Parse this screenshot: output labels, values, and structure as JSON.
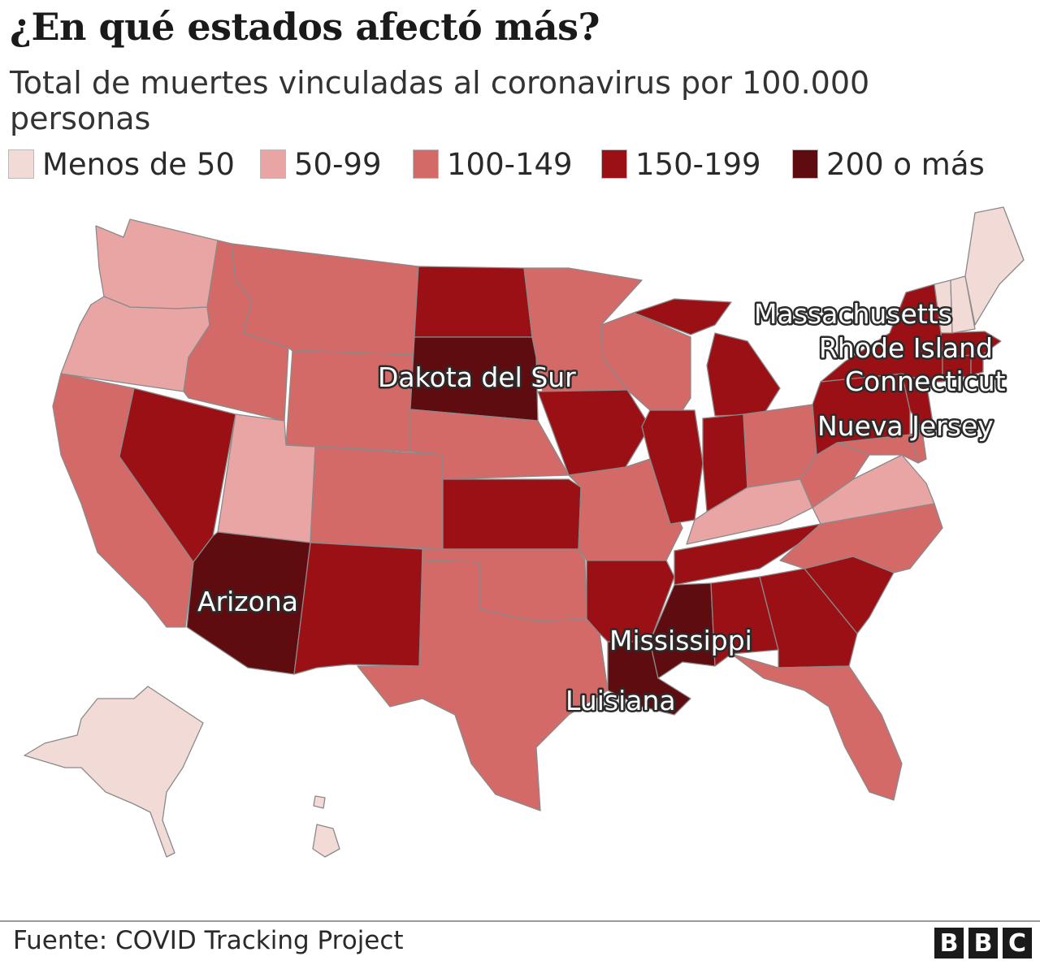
{
  "title": "¿En qué estados afectó más?",
  "subtitle": "Total de muertes vinculadas al coronavirus por 100.000 personas",
  "legend": [
    {
      "label": "Menos de 50",
      "color": "#f2dad6"
    },
    {
      "label": "50-99",
      "color": "#e8a5a3"
    },
    {
      "label": "100-149",
      "color": "#d46a68"
    },
    {
      "label": "150-199",
      "color": "#9a1014"
    },
    {
      "label": "200 o más",
      "color": "#5e0c0f"
    }
  ],
  "map_labels": {
    "massachusetts": "Massachusetts",
    "rhode_island": "Rhode Island",
    "connecticut": "Connecticut",
    "nueva_jersey": "Nueva Jersey",
    "dakota_del_sur": "Dakota del Sur",
    "arizona": "Arizona",
    "mississippi": "Mississippi",
    "luisiana": "Luisiana"
  },
  "states": {
    "washington": "50-99",
    "oregon": "50-99",
    "california": "100-149",
    "nevada": "150-199",
    "idaho": "100-149",
    "montana": "100-149",
    "wyoming": "100-149",
    "utah": "50-99",
    "arizona": "200 o más",
    "colorado": "100-149",
    "new_mexico": "150-199",
    "north_dakota": "150-199",
    "south_dakota": "200 o más",
    "nebraska": "100-149",
    "kansas": "150-199",
    "oklahoma": "100-149",
    "texas": "100-149",
    "minnesota": "100-149",
    "iowa": "150-199",
    "missouri": "100-149",
    "arkansas": "150-199",
    "louisiana": "200 o más",
    "wisconsin": "100-149",
    "illinois": "150-199",
    "michigan": "150-199",
    "indiana": "150-199",
    "ohio": "100-149",
    "kentucky": "50-99",
    "tennessee": "150-199",
    "mississippi": "200 o más",
    "alabama": "150-199",
    "georgia": "150-199",
    "florida": "100-149",
    "south_carolina": "150-199",
    "north_carolina": "100-149",
    "virginia": "50-99",
    "west_virginia": "100-149",
    "maryland": "100-149",
    "delaware": "100-149",
    "pennsylvania": "150-199",
    "new_jersey": "150-199",
    "new_york": "150-199",
    "connecticut": "150-199",
    "rhode_island": "150-199",
    "massachusetts": "150-199",
    "vermont": "Menos de 50",
    "new_hampshire": "Menos de 50",
    "maine": "Menos de 50",
    "alaska": "Menos de 50",
    "hawaii": "Menos de 50"
  },
  "source": "Fuente: COVID Tracking Project",
  "logo": [
    "B",
    "B",
    "C"
  ]
}
